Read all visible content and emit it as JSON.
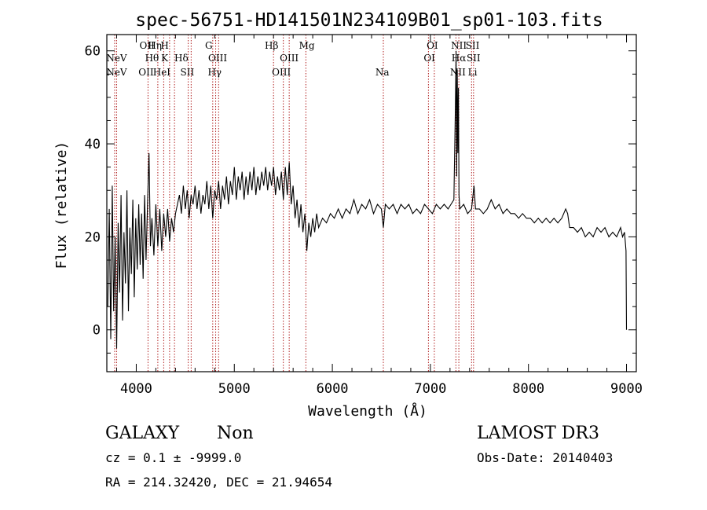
{
  "chart_data": {
    "type": "line",
    "title": "spec-56751-HD141501N234109B01_sp01-103.fits",
    "xlabel": "Wavelength (Å)",
    "ylabel": "Flux (relative)",
    "xlim": [
      3700,
      9100
    ],
    "ylim": [
      -9,
      63.5
    ],
    "x_ticks": [
      4000,
      5000,
      6000,
      7000,
      8000,
      9000
    ],
    "y_ticks": [
      0,
      20,
      40,
      60
    ],
    "grid": false,
    "line_color": "#000000",
    "marker_color": "#b22222",
    "spectral_lines": [
      {
        "label": "NeV",
        "wavelength": 3800,
        "row": 1
      },
      {
        "label": "NeV",
        "wavelength": 3800,
        "row": 2
      },
      {
        "label": "OII",
        "wavelength": 4110,
        "row": 0
      },
      {
        "label": "Hη",
        "wavelength": 4190,
        "row": 0
      },
      {
        "label": "H",
        "wavelength": 4290,
        "row": 0
      },
      {
        "label": "Hθ",
        "wavelength": 4160,
        "row": 1
      },
      {
        "label": "K",
        "wavelength": 4290,
        "row": 1
      },
      {
        "label": "Hδ",
        "wavelength": 4460,
        "row": 1
      },
      {
        "label": "OII",
        "wavelength": 4100,
        "row": 2
      },
      {
        "label": "HeI",
        "wavelength": 4260,
        "row": 2
      },
      {
        "label": "SII",
        "wavelength": 4520,
        "row": 2
      },
      {
        "label": "G",
        "wavelength": 4740,
        "row": 0
      },
      {
        "label": "OIII",
        "wavelength": 4830,
        "row": 1
      },
      {
        "label": "Hγ",
        "wavelength": 4800,
        "row": 2
      },
      {
        "label": "Hβ",
        "wavelength": 5380,
        "row": 0
      },
      {
        "label": "OIII",
        "wavelength": 5560,
        "row": 1
      },
      {
        "label": "OIII",
        "wavelength": 5480,
        "row": 2
      },
      {
        "label": "Mg",
        "wavelength": 5740,
        "row": 0
      },
      {
        "label": "Na",
        "wavelength": 6510,
        "row": 2
      },
      {
        "label": "OI",
        "wavelength": 7020,
        "row": 0
      },
      {
        "label": "OI",
        "wavelength": 6990,
        "row": 1
      },
      {
        "label": "NII",
        "wavelength": 7290,
        "row": 0
      },
      {
        "label": "SII",
        "wavelength": 7430,
        "row": 0
      },
      {
        "label": "Hα",
        "wavelength": 7290,
        "row": 1
      },
      {
        "label": "SII",
        "wavelength": 7440,
        "row": 1
      },
      {
        "label": "NII",
        "wavelength": 7280,
        "row": 2
      },
      {
        "label": "Li",
        "wavelength": 7430,
        "row": 2
      }
    ],
    "marker_wavelengths": [
      3780,
      3800,
      4120,
      4220,
      4280,
      4340,
      4390,
      4530,
      4560,
      4780,
      4810,
      4840,
      5400,
      5500,
      5560,
      5730,
      6520,
      6980,
      7040,
      7260,
      7290,
      7420,
      7440
    ],
    "series": [
      {
        "name": "flux",
        "points": [
          [
            3710,
            5
          ],
          [
            3725,
            26
          ],
          [
            3740,
            -2
          ],
          [
            3755,
            31
          ],
          [
            3770,
            4
          ],
          [
            3785,
            20
          ],
          [
            3800,
            -4
          ],
          [
            3815,
            23
          ],
          [
            3830,
            8
          ],
          [
            3845,
            29
          ],
          [
            3860,
            2
          ],
          [
            3875,
            21
          ],
          [
            3890,
            10
          ],
          [
            3905,
            30
          ],
          [
            3920,
            4
          ],
          [
            3935,
            22
          ],
          [
            3950,
            12
          ],
          [
            3965,
            28
          ],
          [
            3980,
            7
          ],
          [
            3995,
            24
          ],
          [
            4010,
            13
          ],
          [
            4025,
            27
          ],
          [
            4040,
            14
          ],
          [
            4055,
            25
          ],
          [
            4070,
            11
          ],
          [
            4085,
            29
          ],
          [
            4100,
            15
          ],
          [
            4115,
            27
          ],
          [
            4130,
            38
          ],
          [
            4145,
            18
          ],
          [
            4160,
            24
          ],
          [
            4180,
            16
          ],
          [
            4200,
            27
          ],
          [
            4220,
            18
          ],
          [
            4240,
            26
          ],
          [
            4260,
            17
          ],
          [
            4280,
            25
          ],
          [
            4300,
            20
          ],
          [
            4320,
            26
          ],
          [
            4340,
            19
          ],
          [
            4360,
            24
          ],
          [
            4380,
            21
          ],
          [
            4400,
            25
          ],
          [
            4420,
            27
          ],
          [
            4440,
            29
          ],
          [
            4460,
            25
          ],
          [
            4480,
            31
          ],
          [
            4500,
            26
          ],
          [
            4520,
            30
          ],
          [
            4540,
            24
          ],
          [
            4560,
            29
          ],
          [
            4580,
            27
          ],
          [
            4600,
            31
          ],
          [
            4620,
            26
          ],
          [
            4640,
            30
          ],
          [
            4660,
            25
          ],
          [
            4680,
            29
          ],
          [
            4700,
            27
          ],
          [
            4720,
            32
          ],
          [
            4740,
            26
          ],
          [
            4760,
            31
          ],
          [
            4780,
            24
          ],
          [
            4800,
            30
          ],
          [
            4820,
            28
          ],
          [
            4840,
            32
          ],
          [
            4860,
            26
          ],
          [
            4880,
            31
          ],
          [
            4900,
            28
          ],
          [
            4920,
            33
          ],
          [
            4940,
            27
          ],
          [
            4960,
            32
          ],
          [
            4980,
            29
          ],
          [
            5000,
            35
          ],
          [
            5020,
            28
          ],
          [
            5040,
            33
          ],
          [
            5060,
            30
          ],
          [
            5080,
            34
          ],
          [
            5100,
            28
          ],
          [
            5120,
            33
          ],
          [
            5140,
            29
          ],
          [
            5160,
            34
          ],
          [
            5180,
            30
          ],
          [
            5200,
            35
          ],
          [
            5220,
            29
          ],
          [
            5240,
            33
          ],
          [
            5260,
            30
          ],
          [
            5280,
            34
          ],
          [
            5300,
            31
          ],
          [
            5320,
            35
          ],
          [
            5340,
            30
          ],
          [
            5360,
            34
          ],
          [
            5380,
            31
          ],
          [
            5400,
            35
          ],
          [
            5420,
            29
          ],
          [
            5440,
            33
          ],
          [
            5460,
            30
          ],
          [
            5480,
            34
          ],
          [
            5500,
            28
          ],
          [
            5520,
            35
          ],
          [
            5540,
            29
          ],
          [
            5560,
            36
          ],
          [
            5580,
            27
          ],
          [
            5600,
            31
          ],
          [
            5620,
            24
          ],
          [
            5640,
            28
          ],
          [
            5660,
            22
          ],
          [
            5680,
            27
          ],
          [
            5700,
            21
          ],
          [
            5720,
            25
          ],
          [
            5740,
            17
          ],
          [
            5760,
            23
          ],
          [
            5780,
            20
          ],
          [
            5800,
            24
          ],
          [
            5820,
            21
          ],
          [
            5840,
            25
          ],
          [
            5860,
            22
          ],
          [
            5900,
            24
          ],
          [
            5940,
            23
          ],
          [
            5980,
            25
          ],
          [
            6020,
            24
          ],
          [
            6060,
            26
          ],
          [
            6100,
            24
          ],
          [
            6140,
            26
          ],
          [
            6180,
            25
          ],
          [
            6220,
            28
          ],
          [
            6260,
            25
          ],
          [
            6300,
            27
          ],
          [
            6340,
            26
          ],
          [
            6380,
            28
          ],
          [
            6420,
            25
          ],
          [
            6460,
            27
          ],
          [
            6500,
            26
          ],
          [
            6520,
            22
          ],
          [
            6540,
            27
          ],
          [
            6580,
            26
          ],
          [
            6620,
            27
          ],
          [
            6660,
            25
          ],
          [
            6700,
            27
          ],
          [
            6740,
            26
          ],
          [
            6780,
            27
          ],
          [
            6820,
            25
          ],
          [
            6860,
            26
          ],
          [
            6900,
            25
          ],
          [
            6940,
            27
          ],
          [
            6980,
            26
          ],
          [
            7020,
            25
          ],
          [
            7060,
            27
          ],
          [
            7100,
            26
          ],
          [
            7140,
            27
          ],
          [
            7180,
            26
          ],
          [
            7210,
            27
          ],
          [
            7240,
            28
          ],
          [
            7255,
            48
          ],
          [
            7262,
            60
          ],
          [
            7268,
            33
          ],
          [
            7274,
            56
          ],
          [
            7280,
            38
          ],
          [
            7286,
            52
          ],
          [
            7292,
            29
          ],
          [
            7300,
            26
          ],
          [
            7340,
            27
          ],
          [
            7380,
            25
          ],
          [
            7420,
            26
          ],
          [
            7445,
            31
          ],
          [
            7460,
            26
          ],
          [
            7500,
            26
          ],
          [
            7540,
            25
          ],
          [
            7580,
            26
          ],
          [
            7620,
            28
          ],
          [
            7660,
            26
          ],
          [
            7700,
            27
          ],
          [
            7740,
            25
          ],
          [
            7780,
            26
          ],
          [
            7820,
            25
          ],
          [
            7860,
            25
          ],
          [
            7900,
            24
          ],
          [
            7940,
            25
          ],
          [
            7980,
            24
          ],
          [
            8020,
            24
          ],
          [
            8060,
            23
          ],
          [
            8100,
            24
          ],
          [
            8140,
            23
          ],
          [
            8180,
            24
          ],
          [
            8220,
            23
          ],
          [
            8260,
            24
          ],
          [
            8300,
            23
          ],
          [
            8340,
            24
          ],
          [
            8380,
            26
          ],
          [
            8400,
            25
          ],
          [
            8420,
            22
          ],
          [
            8460,
            22
          ],
          [
            8500,
            21
          ],
          [
            8540,
            22
          ],
          [
            8580,
            20
          ],
          [
            8620,
            21
          ],
          [
            8660,
            20
          ],
          [
            8700,
            22
          ],
          [
            8740,
            21
          ],
          [
            8780,
            22
          ],
          [
            8820,
            20
          ],
          [
            8860,
            21
          ],
          [
            8900,
            20
          ],
          [
            8940,
            22
          ],
          [
            8960,
            20
          ],
          [
            8980,
            21
          ],
          [
            8995,
            17
          ],
          [
            9000,
            0
          ]
        ]
      }
    ]
  },
  "info": {
    "object_class": "GALAXY",
    "subclass": "Non",
    "cz_line": "cz = 0.1 ± -9999.0",
    "coords_line": "RA = 214.32420, DEC =  21.94654",
    "survey": "LAMOST DR3",
    "obs_date": "Obs-Date: 20140403"
  }
}
